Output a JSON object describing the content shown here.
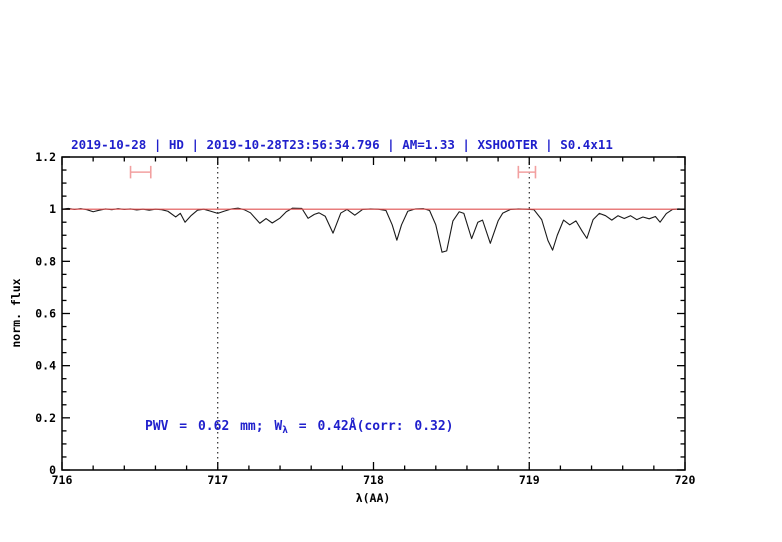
{
  "title": {
    "text": "2019-10-28 | HD | 2019-10-28T23:56:34.796 | AM=1.33 | XSHOOTER | S0.4x11",
    "color": "#1f1fcc"
  },
  "annotation": {
    "part1": "PWV = 0.62 mm; W",
    "sub": "λ",
    "part2": " = 0.42Å(corr: 0.32)",
    "color": "#1f1fcc"
  },
  "colors": {
    "spectrum": "#1a1a1a",
    "continuum_fit": "#e05050",
    "range_marker": "#f2a0a0",
    "frame": "#000000",
    "accent_blue": "#1f1fcc"
  },
  "chart_data": {
    "type": "line",
    "title": "2019-10-28 | HD | 2019-10-28T23:56:34.796 | AM=1.33 | XSHOOTER | S0.4x11",
    "xlabel": "λ(AA)",
    "ylabel": "norm. flux",
    "xlim": [
      716,
      720
    ],
    "ylim": [
      0,
      1.2
    ],
    "grid": "off",
    "legend": "none",
    "x_major_ticks": [
      {
        "v": 716,
        "label": "716"
      },
      {
        "v": 717,
        "label": "717"
      },
      {
        "v": 718,
        "label": "718"
      },
      {
        "v": 719,
        "label": "719"
      },
      {
        "v": 720,
        "label": "720"
      }
    ],
    "x_minor_step": 0.2,
    "y_major_ticks": [
      {
        "v": 0,
        "label": "0"
      },
      {
        "v": 0.2,
        "label": "0.2"
      },
      {
        "v": 0.4,
        "label": "0.4"
      },
      {
        "v": 0.6,
        "label": "0.6"
      },
      {
        "v": 0.8,
        "label": "0.8"
      },
      {
        "v": 1,
        "label": "1"
      },
      {
        "v": 1.2,
        "label": "1.2"
      }
    ],
    "y_minor_step": 0.05,
    "dotted_vlines": [
      717,
      719
    ],
    "range_markers": [
      {
        "x1": 716.44,
        "x2": 716.57,
        "y": 1.142,
        "cap_half_height": 0.024
      },
      {
        "x1": 718.93,
        "x2": 719.04,
        "y": 1.142,
        "cap_half_height": 0.024
      }
    ],
    "series": [
      {
        "name": "observed-spectrum",
        "color": "#1a1a1a",
        "points": [
          [
            716.0,
            1.0
          ],
          [
            716.04,
            1.003
          ],
          [
            716.08,
            0.999
          ],
          [
            716.12,
            1.002
          ],
          [
            716.16,
            0.998
          ],
          [
            716.2,
            0.99
          ],
          [
            716.24,
            0.996
          ],
          [
            716.28,
            1.001
          ],
          [
            716.32,
            0.998
          ],
          [
            716.36,
            1.002
          ],
          [
            716.4,
            0.999
          ],
          [
            716.44,
            1.001
          ],
          [
            716.48,
            0.997
          ],
          [
            716.52,
            1.0
          ],
          [
            716.56,
            0.996
          ],
          [
            716.6,
            1.0
          ],
          [
            716.64,
            0.998
          ],
          [
            716.68,
            0.992
          ],
          [
            716.73,
            0.97
          ],
          [
            716.76,
            0.984
          ],
          [
            716.79,
            0.95
          ],
          [
            716.83,
            0.976
          ],
          [
            716.87,
            0.996
          ],
          [
            716.91,
            1.0
          ],
          [
            716.95,
            0.993
          ],
          [
            717.0,
            0.984
          ],
          [
            717.04,
            0.992
          ],
          [
            717.09,
            1.001
          ],
          [
            717.13,
            1.004
          ],
          [
            717.17,
            0.998
          ],
          [
            717.21,
            0.986
          ],
          [
            717.27,
            0.946
          ],
          [
            717.31,
            0.964
          ],
          [
            717.35,
            0.947
          ],
          [
            717.4,
            0.966
          ],
          [
            717.44,
            0.99
          ],
          [
            717.48,
            1.004
          ],
          [
            717.54,
            1.003
          ],
          [
            717.58,
            0.965
          ],
          [
            717.62,
            0.98
          ],
          [
            717.65,
            0.986
          ],
          [
            717.69,
            0.973
          ],
          [
            717.74,
            0.908
          ],
          [
            717.79,
            0.985
          ],
          [
            717.83,
            0.999
          ],
          [
            717.88,
            0.977
          ],
          [
            717.93,
            0.999
          ],
          [
            717.98,
            1.001
          ],
          [
            718.03,
            1.0
          ],
          [
            718.08,
            0.995
          ],
          [
            718.12,
            0.94
          ],
          [
            718.15,
            0.881
          ],
          [
            718.18,
            0.94
          ],
          [
            718.22,
            0.992
          ],
          [
            718.27,
            1.001
          ],
          [
            718.32,
            1.002
          ],
          [
            718.36,
            0.995
          ],
          [
            718.4,
            0.94
          ],
          [
            718.44,
            0.835
          ],
          [
            718.47,
            0.84
          ],
          [
            718.51,
            0.955
          ],
          [
            718.55,
            0.99
          ],
          [
            718.58,
            0.984
          ],
          [
            718.63,
            0.887
          ],
          [
            718.67,
            0.95
          ],
          [
            718.7,
            0.958
          ],
          [
            718.75,
            0.869
          ],
          [
            718.8,
            0.955
          ],
          [
            718.83,
            0.985
          ],
          [
            718.88,
            0.999
          ],
          [
            718.93,
            1.001
          ],
          [
            718.98,
            1.0
          ],
          [
            719.03,
            0.998
          ],
          [
            719.08,
            0.96
          ],
          [
            719.12,
            0.88
          ],
          [
            719.15,
            0.843
          ],
          [
            719.18,
            0.9
          ],
          [
            719.22,
            0.958
          ],
          [
            719.26,
            0.94
          ],
          [
            719.3,
            0.955
          ],
          [
            719.34,
            0.915
          ],
          [
            719.37,
            0.888
          ],
          [
            719.41,
            0.96
          ],
          [
            719.45,
            0.984
          ],
          [
            719.49,
            0.975
          ],
          [
            719.53,
            0.958
          ],
          [
            719.57,
            0.975
          ],
          [
            719.61,
            0.964
          ],
          [
            719.65,
            0.975
          ],
          [
            719.69,
            0.96
          ],
          [
            719.73,
            0.97
          ],
          [
            719.77,
            0.963
          ],
          [
            719.81,
            0.972
          ],
          [
            719.84,
            0.95
          ],
          [
            719.88,
            0.983
          ],
          [
            719.92,
            0.999
          ],
          [
            719.96,
            1.001
          ],
          [
            720.0,
            0.999
          ]
        ]
      },
      {
        "name": "continuum-fit",
        "color": "#e05050",
        "points": [
          [
            716.0,
            1.0
          ],
          [
            720.0,
            1.0
          ]
        ]
      }
    ]
  }
}
